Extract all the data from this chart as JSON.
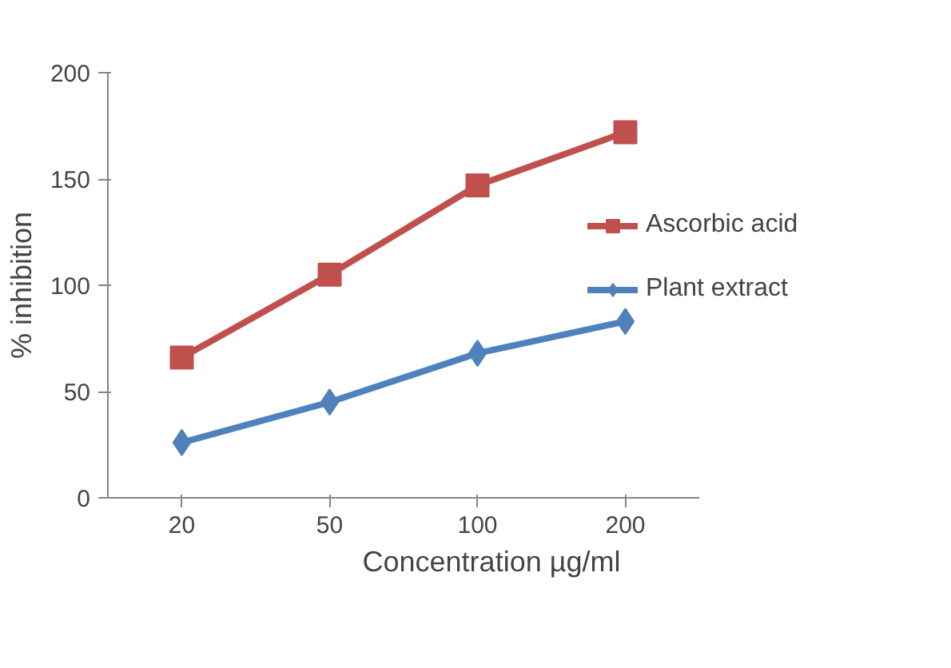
{
  "chart_data": {
    "type": "line",
    "xlabel": "Concentration µg/ml",
    "ylabel": "% inhibition",
    "categories": [
      "20",
      "50",
      "100",
      "200"
    ],
    "ylim": [
      0,
      200
    ],
    "yticks": [
      0,
      50,
      100,
      150,
      200
    ],
    "grid": false,
    "legend": "right",
    "line_style": "solid",
    "series": [
      {
        "name": "Ascorbic acid",
        "color": "#c0504d",
        "marker": "square",
        "values": [
          66,
          105,
          147,
          172
        ]
      },
      {
        "name": "Plant extract",
        "color": "#4f81bd",
        "marker": "diamond",
        "values": [
          26,
          45,
          68,
          83
        ]
      }
    ]
  }
}
